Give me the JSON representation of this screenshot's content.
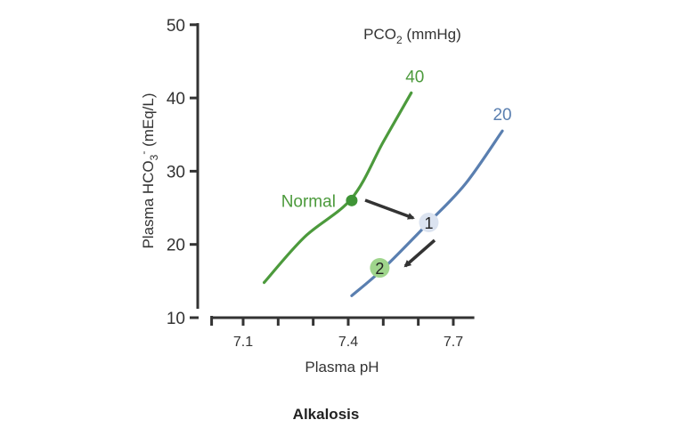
{
  "chart_data": {
    "type": "line",
    "title": "Alkalosis",
    "xlabel": "Plasma pH",
    "ylabel": "Plasma HCO3- (mEq/L)",
    "ylabel_parts": {
      "pre": "Plasma HCO",
      "sub": "3",
      "sup": "-",
      "post": " (mEq/L)"
    },
    "legend_title": "PCO2 (mmHg)",
    "legend_title_parts": {
      "pre": "PCO",
      "sub": "2",
      "post": " (mmHg)"
    },
    "xlim": [
      7.01,
      7.76
    ],
    "ylim": [
      10,
      50
    ],
    "xticks": [
      7.1,
      7.2,
      7.3,
      7.4,
      7.5,
      7.6,
      7.7
    ],
    "xtick_labels": [
      "7.1",
      "",
      "",
      "7.4",
      "",
      "",
      "7.7"
    ],
    "yticks": [
      10,
      20,
      30,
      40,
      50
    ],
    "ytick_labels": [
      "10",
      "20",
      "30",
      "40",
      "50"
    ],
    "grid": false,
    "series": [
      {
        "name": "40",
        "color": "#4c9a3c",
        "x": [
          7.16,
          7.275,
          7.41,
          7.5,
          7.58
        ],
        "y": [
          14.8,
          21,
          26.3,
          34,
          40.7
        ]
      },
      {
        "name": "20",
        "color": "#5a7fb0",
        "x": [
          7.41,
          7.5,
          7.63,
          7.735,
          7.84
        ],
        "y": [
          13,
          16.7,
          23,
          28.3,
          35.5
        ]
      }
    ],
    "points": [
      {
        "label": "Normal",
        "x": 7.41,
        "y": 26,
        "color": "#3f9436",
        "fill": "#3f9436",
        "label_color": "#4c9a3c"
      },
      {
        "label": "1",
        "x": 7.63,
        "y": 23,
        "color": "#222222",
        "fill": "#dbe3f0"
      },
      {
        "label": "2",
        "x": 7.49,
        "y": 16.8,
        "color": "#222222",
        "fill": "#9fd58c"
      }
    ],
    "arrows": [
      {
        "from": "Normal",
        "to": "1"
      },
      {
        "from": "1",
        "to": "2"
      }
    ]
  }
}
